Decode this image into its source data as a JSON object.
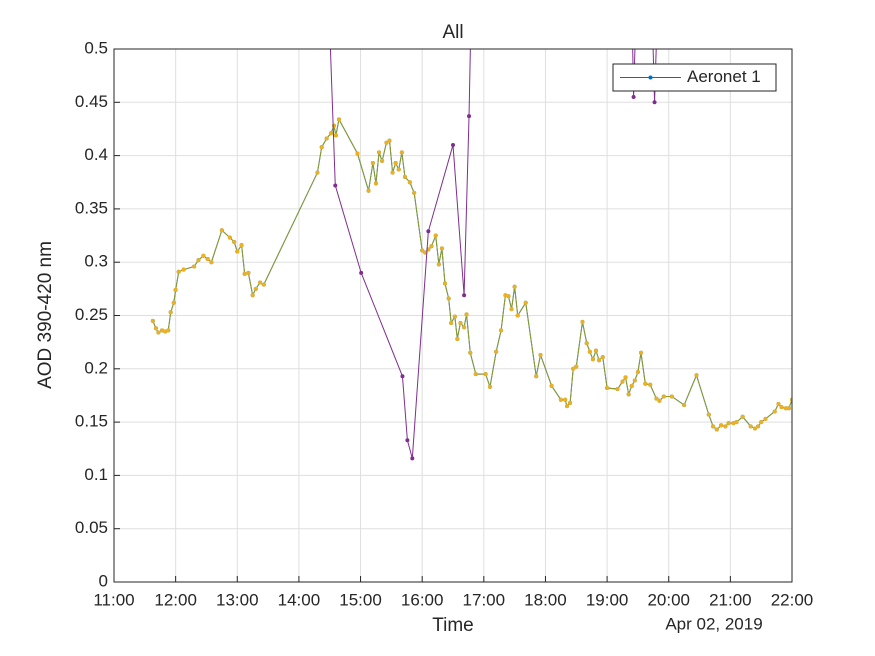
{
  "chart_data": {
    "type": "line",
    "title": "All",
    "x_label": "Time",
    "y_label": "AOD 390-420 nm",
    "date_label": "Apr 02, 2019",
    "xlim": [
      11,
      22
    ],
    "xticks": [
      {
        "value": 11,
        "label": "11:00"
      },
      {
        "value": 12,
        "label": "12:00"
      },
      {
        "value": 13,
        "label": "13:00"
      },
      {
        "value": 14,
        "label": "14:00"
      },
      {
        "value": 15,
        "label": "15:00"
      },
      {
        "value": 16,
        "label": "16:00"
      },
      {
        "value": 17,
        "label": "17:00"
      },
      {
        "value": 18,
        "label": "18:00"
      },
      {
        "value": 19,
        "label": "19:00"
      },
      {
        "value": 20,
        "label": "20:00"
      },
      {
        "value": 21,
        "label": "21:00"
      },
      {
        "value": 22,
        "label": "22:00"
      }
    ],
    "ylim": [
      0,
      0.5
    ],
    "yticks": [
      0,
      0.05,
      0.1,
      0.15,
      0.2,
      0.25,
      0.3,
      0.35,
      0.4,
      0.45,
      0.5
    ],
    "grid": true,
    "legend": "northeast",
    "x": [
      11.63,
      11.68,
      11.72,
      11.78,
      11.83,
      11.88,
      11.92,
      11.97,
      12.0,
      12.05,
      12.13,
      12.3,
      12.37,
      12.45,
      12.52,
      12.58,
      12.75,
      12.88,
      12.95,
      13.0,
      13.07,
      13.12,
      13.18,
      13.25,
      13.3,
      13.37,
      13.43,
      14.3,
      14.37,
      14.45,
      14.52,
      14.57,
      14.6,
      14.65,
      14.95,
      15.13,
      15.2,
      15.25,
      15.3,
      15.35,
      15.42,
      15.47,
      15.52,
      15.57,
      15.62,
      15.67,
      15.72,
      15.8,
      15.87,
      16.0,
      16.05,
      16.1,
      16.15,
      16.22,
      16.27,
      16.32,
      16.37,
      16.43,
      16.47,
      16.53,
      16.57,
      16.62,
      16.68,
      16.72,
      16.78,
      16.87,
      17.03,
      17.1,
      17.2,
      17.28,
      17.35,
      17.4,
      17.45,
      17.5,
      17.55,
      17.68,
      17.85,
      17.92,
      18.1,
      18.25,
      18.32,
      18.35,
      18.4,
      18.45,
      18.5,
      18.6,
      18.67,
      18.72,
      18.77,
      18.82,
      18.87,
      18.93,
      19.0,
      19.17,
      19.25,
      19.3,
      19.35,
      19.4,
      19.45,
      19.5,
      19.55,
      19.62,
      19.7,
      19.8,
      19.85,
      19.92,
      20.05,
      20.25,
      20.45,
      20.65,
      20.72,
      20.78,
      20.85,
      20.92,
      20.97,
      21.05,
      21.1,
      21.2,
      21.33,
      21.4,
      21.45,
      21.5,
      21.57,
      21.72,
      21.78,
      21.83,
      21.9,
      21.95,
      22.0
    ],
    "series": [
      {
        "name": "Aeronet 1",
        "color": "#0072bd",
        "values": [
          0.245,
          0.238,
          0.234,
          0.236,
          0.235,
          0.236,
          0.253,
          0.262,
          0.274,
          0.291,
          0.293,
          0.296,
          0.302,
          0.306,
          0.303,
          0.3,
          0.33,
          0.323,
          0.319,
          0.31,
          0.316,
          0.289,
          0.29,
          0.269,
          0.275,
          0.281,
          0.279,
          0.384,
          0.408,
          0.416,
          0.421,
          0.428,
          0.419,
          0.434,
          0.402,
          0.367,
          0.393,
          0.374,
          0.403,
          0.395,
          0.412,
          0.414,
          0.384,
          0.393,
          0.387,
          0.403,
          0.38,
          0.375,
          0.365,
          0.311,
          0.309,
          0.312,
          0.315,
          0.325,
          0.298,
          0.313,
          0.28,
          0.266,
          0.243,
          0.249,
          0.228,
          0.243,
          0.239,
          0.251,
          0.215,
          0.195,
          0.195,
          0.183,
          0.216,
          0.236,
          0.269,
          0.268,
          0.256,
          0.277,
          0.25,
          0.262,
          0.193,
          0.213,
          0.184,
          0.171,
          0.171,
          0.165,
          0.168,
          0.2,
          0.202,
          0.244,
          0.224,
          0.216,
          0.209,
          0.217,
          0.208,
          0.211,
          0.182,
          0.181,
          0.188,
          0.192,
          0.176,
          0.184,
          0.189,
          0.197,
          0.215,
          0.186,
          0.185,
          0.172,
          0.17,
          0.174,
          0.174,
          0.166,
          0.194,
          0.157,
          0.146,
          0.143,
          0.147,
          0.146,
          0.149,
          0.149,
          0.15,
          0.155,
          0.146,
          0.144,
          0.146,
          0.15,
          0.153,
          0.16,
          0.167,
          0.164,
          0.163,
          0.163,
          0.171
        ]
      },
      {
        "color": "#edb120",
        "line_color": "#8d9a2c",
        "values": [
          0.245,
          0.238,
          0.234,
          0.236,
          0.235,
          0.236,
          0.253,
          0.262,
          0.274,
          0.291,
          0.293,
          0.296,
          0.302,
          0.306,
          0.303,
          0.3,
          0.33,
          0.323,
          0.319,
          0.31,
          0.316,
          0.289,
          0.29,
          0.269,
          0.275,
          0.281,
          0.279,
          0.384,
          0.408,
          0.416,
          0.421,
          0.428,
          0.419,
          0.434,
          0.402,
          0.367,
          0.393,
          0.374,
          0.403,
          0.395,
          0.412,
          0.414,
          0.384,
          0.393,
          0.387,
          0.403,
          0.38,
          0.375,
          0.365,
          0.311,
          0.309,
          0.312,
          0.315,
          0.325,
          0.298,
          0.313,
          0.28,
          0.266,
          0.243,
          0.249,
          0.228,
          0.243,
          0.239,
          0.251,
          0.215,
          0.195,
          0.195,
          0.183,
          0.216,
          0.236,
          0.269,
          0.268,
          0.256,
          0.277,
          0.25,
          0.262,
          0.193,
          0.213,
          0.184,
          0.171,
          0.171,
          0.165,
          0.168,
          0.2,
          0.202,
          0.244,
          0.224,
          0.216,
          0.209,
          0.217,
          0.208,
          0.211,
          0.182,
          0.181,
          0.188,
          0.192,
          0.176,
          0.184,
          0.189,
          0.197,
          0.215,
          0.186,
          0.185,
          0.172,
          0.17,
          0.174,
          0.174,
          0.166,
          0.194,
          0.157,
          0.146,
          0.143,
          0.147,
          0.146,
          0.149,
          0.149,
          0.15,
          0.155,
          0.146,
          0.144,
          0.146,
          0.15,
          0.153,
          0.16,
          0.167,
          0.164,
          0.163,
          0.163,
          0.171
        ]
      },
      {
        "color": "#7e2f8e",
        "x": [
          14.45,
          14.59,
          15.01,
          15.68,
          15.76,
          15.84,
          16.1,
          16.5,
          16.68,
          16.76,
          16.85,
          19.35,
          19.43,
          19.5,
          19.7,
          19.77,
          19.85
        ],
        "values": [
          0.6,
          0.372,
          0.29,
          0.193,
          0.133,
          0.116,
          0.329,
          0.41,
          0.269,
          0.437,
          0.7,
          0.7,
          0.455,
          0.6,
          0.6,
          0.45,
          0.6
        ]
      }
    ]
  }
}
